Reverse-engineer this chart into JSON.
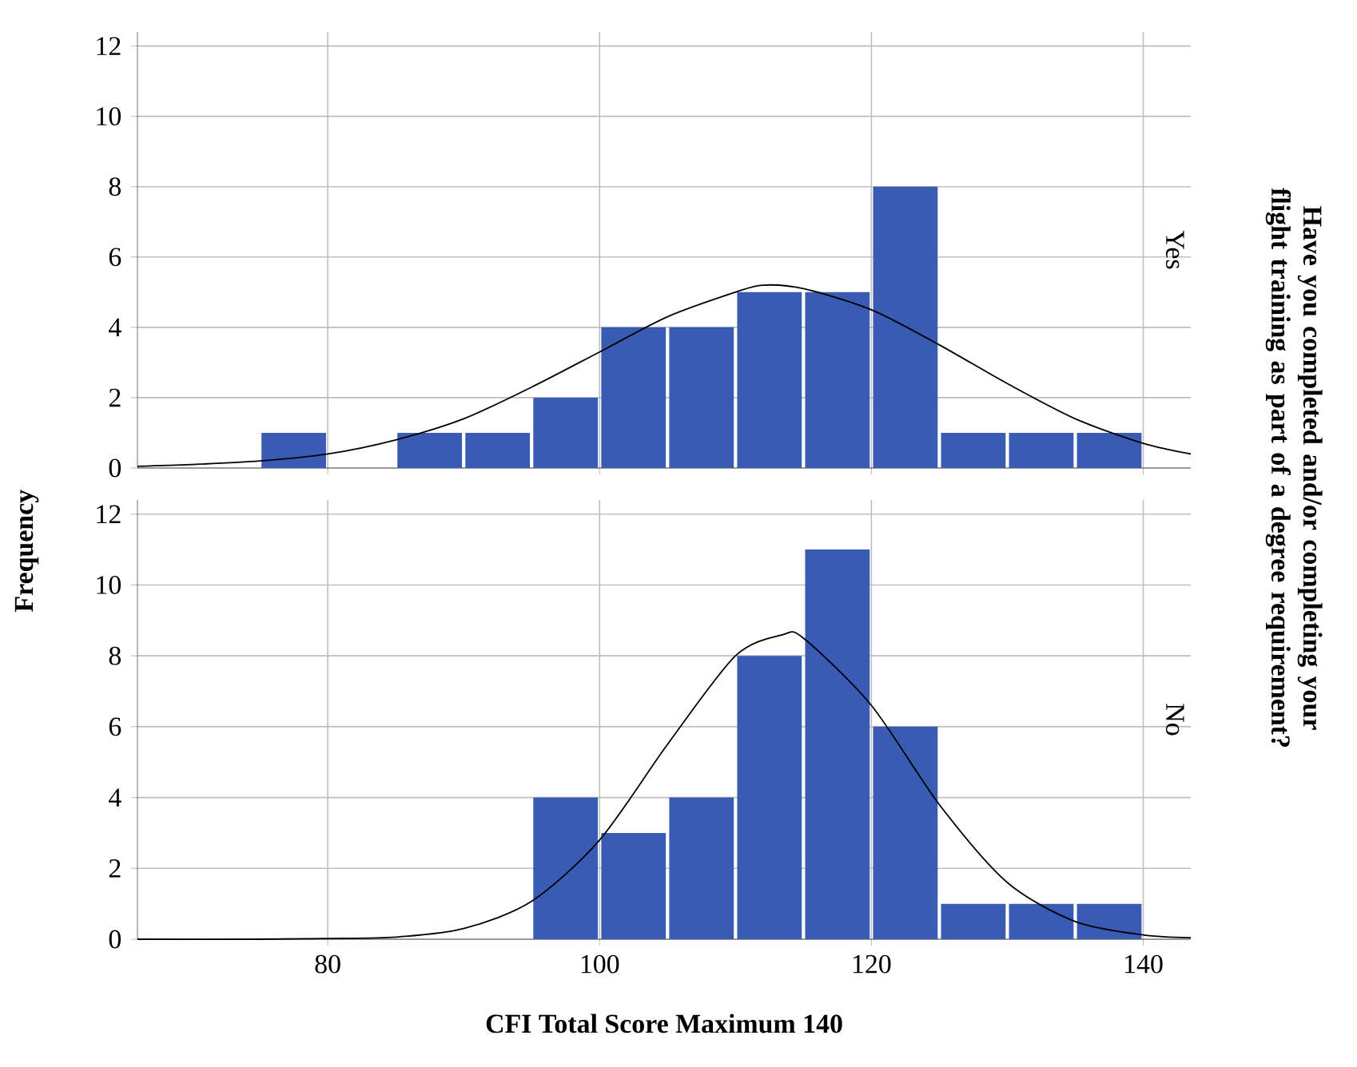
{
  "chart_data": [
    {
      "type": "histogram",
      "title": "Yes",
      "ylabel": "Frequency",
      "y2label": "Have you completed and/or completing your flight training as part of a degree requirement?",
      "xlim": [
        66,
        143.5
      ],
      "ylim": [
        0,
        12.4
      ],
      "xticks": [
        80,
        100,
        120,
        140
      ],
      "yticks": [
        0,
        2,
        4,
        6,
        8,
        10,
        12
      ],
      "grid": true,
      "tick_labels": "y",
      "series": [
        {
          "type": "histogram",
          "color": "#3a5bb4",
          "bins": [
            75,
            80,
            85,
            90,
            95,
            100,
            105,
            110,
            115,
            120,
            125,
            130,
            135,
            140
          ],
          "values": [
            1,
            0,
            1,
            1,
            2,
            4,
            4,
            5,
            5,
            8,
            1,
            1,
            1
          ]
        },
        {
          "type": "line",
          "color": "#000000",
          "x": [
            66,
            70,
            75,
            80,
            85,
            90,
            95,
            100,
            105,
            110,
            112,
            115,
            120,
            125,
            130,
            135,
            140,
            143.5
          ],
          "values": [
            0.05,
            0.1,
            0.2,
            0.4,
            0.8,
            1.4,
            2.3,
            3.3,
            4.3,
            5.0,
            5.2,
            5.1,
            4.5,
            3.5,
            2.4,
            1.4,
            0.7,
            0.4
          ]
        }
      ]
    },
    {
      "type": "histogram",
      "title": "No",
      "xlabel": "CFI Total Score Maximum 140",
      "xlim": [
        66,
        143.5
      ],
      "ylim": [
        0,
        12.4
      ],
      "xticks": [
        80,
        100,
        120,
        140
      ],
      "yticks": [
        0,
        2,
        4,
        6,
        8,
        10,
        12
      ],
      "grid": true,
      "series": [
        {
          "type": "histogram",
          "color": "#3a5bb4",
          "bins": [
            95,
            100,
            105,
            110,
            115,
            120,
            125,
            130,
            135,
            140
          ],
          "values": [
            4,
            3,
            4,
            8,
            11,
            6,
            1,
            1,
            1
          ]
        },
        {
          "type": "line",
          "color": "#000000",
          "x": [
            66,
            75,
            80,
            85,
            90,
            95,
            100,
            105,
            110,
            113.5,
            115,
            120,
            125,
            130,
            135,
            140,
            143.5
          ],
          "values": [
            0,
            0,
            0.02,
            0.06,
            0.3,
            1.07,
            2.8,
            5.5,
            8.0,
            8.6,
            8.5,
            6.6,
            3.8,
            1.6,
            0.5,
            0.12,
            0.04
          ]
        }
      ]
    }
  ]
}
